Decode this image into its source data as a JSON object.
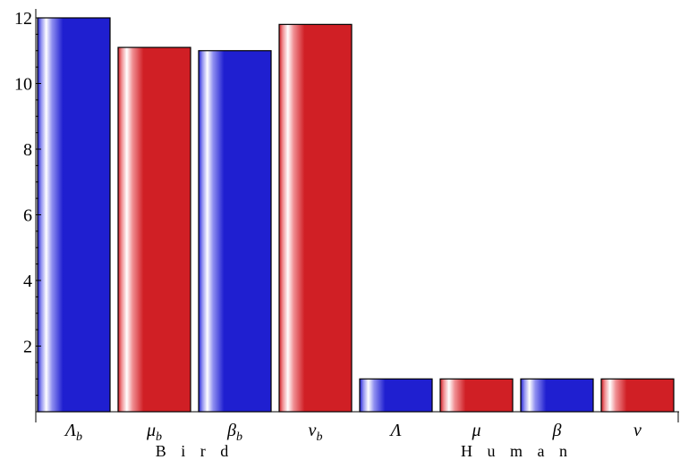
{
  "chart_data": {
    "type": "bar",
    "categories": [
      "Λ_b",
      "μ_b",
      "β_b",
      "ν_b",
      "Λ",
      "μ",
      "β",
      "ν"
    ],
    "category_labels": [
      {
        "base": "Λ",
        "sub": "b"
      },
      {
        "base": "μ",
        "sub": "b"
      },
      {
        "base": "β",
        "sub": "b"
      },
      {
        "base": "ν",
        "sub": "b"
      },
      {
        "base": "Λ",
        "sub": ""
      },
      {
        "base": "μ",
        "sub": ""
      },
      {
        "base": "β",
        "sub": ""
      },
      {
        "base": "ν",
        "sub": ""
      }
    ],
    "values": [
      12.0,
      11.1,
      11.0,
      11.8,
      1.0,
      1.0,
      1.0,
      1.0
    ],
    "bar_colors": [
      "blue",
      "red",
      "blue",
      "red",
      "blue",
      "red",
      "blue",
      "red"
    ],
    "groups": [
      {
        "label": "B i r d",
        "members": [
          0,
          1,
          2,
          3
        ]
      },
      {
        "label": "H u m a n",
        "members": [
          4,
          5,
          6,
          7
        ]
      }
    ],
    "ylim": [
      0,
      12
    ],
    "yticks": [
      2,
      4,
      6,
      8,
      10,
      12
    ],
    "title": "",
    "xlabel": "",
    "ylabel": "",
    "grid": false
  },
  "colors": {
    "blue": "#1f1fd0",
    "red": "#d01f25",
    "axis": "#000000"
  }
}
